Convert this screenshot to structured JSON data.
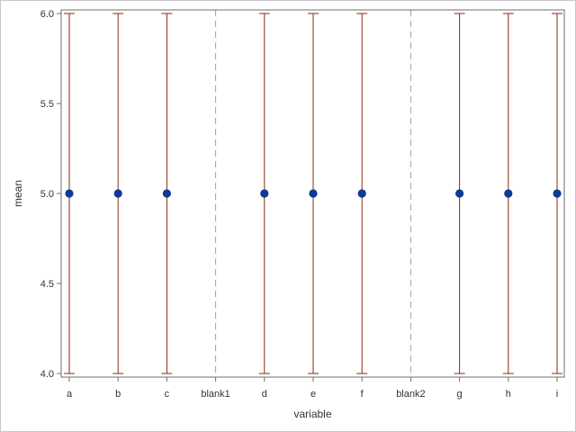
{
  "chart_data": {
    "type": "scatter",
    "xlabel": "variable",
    "ylabel": "mean",
    "categories": [
      "a",
      "b",
      "c",
      "blank1",
      "d",
      "e",
      "f",
      "blank2",
      "g",
      "h",
      "i"
    ],
    "ylim": [
      3.98,
      6.02
    ],
    "y_ticks": [
      "4.0",
      "4.5",
      "5.0",
      "5.5",
      "6.0"
    ],
    "reference_lines": [
      "blank1",
      "blank2"
    ],
    "series": [
      {
        "points": [
          {
            "x": "a",
            "y": 5.0,
            "lower": 4.0,
            "upper": 6.0
          },
          {
            "x": "b",
            "y": 5.0,
            "lower": 4.0,
            "upper": 6.0
          },
          {
            "x": "c",
            "y": 5.0,
            "lower": 4.0,
            "upper": 6.0
          },
          {
            "x": "d",
            "y": 5.0,
            "lower": 4.0,
            "upper": 6.0
          },
          {
            "x": "e",
            "y": 5.0,
            "lower": 4.0,
            "upper": 6.0
          },
          {
            "x": "f",
            "y": 5.0,
            "lower": 4.0,
            "upper": 6.0
          },
          {
            "x": "g",
            "y": 5.0,
            "lower": 4.0,
            "upper": 6.0
          },
          {
            "x": "h",
            "y": 5.0,
            "lower": 4.0,
            "upper": 6.0
          },
          {
            "x": "i",
            "y": 5.0,
            "lower": 4.0,
            "upper": 6.0
          }
        ]
      }
    ],
    "grid": false,
    "colors": {
      "marker": "#0b3b93",
      "error_bar": "#8b2a12",
      "reference_line": "#a0a0a0",
      "axis": "#6e6e6e"
    }
  }
}
